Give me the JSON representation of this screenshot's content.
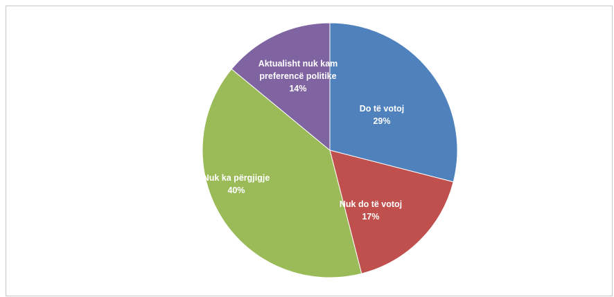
{
  "chart_data": {
    "type": "pie",
    "title": "",
    "slices": [
      {
        "label": "Do të votoj",
        "value": 29,
        "value_label": "29%",
        "color": "#4f81bd"
      },
      {
        "label": "Nuk do të votoj",
        "value": 17,
        "value_label": "17%",
        "color": "#c0504d"
      },
      {
        "label": "Nuk ka përgjigje",
        "value": 40,
        "value_label": "40%",
        "color": "#9bbb59"
      },
      {
        "label": "Aktualisht nuk kam preferencë politike",
        "value": 14,
        "value_label": "14%",
        "color": "#8064a2"
      }
    ],
    "start": "12 o'clock",
    "direction": "clockwise",
    "labels_inside": true,
    "legend": "none"
  }
}
